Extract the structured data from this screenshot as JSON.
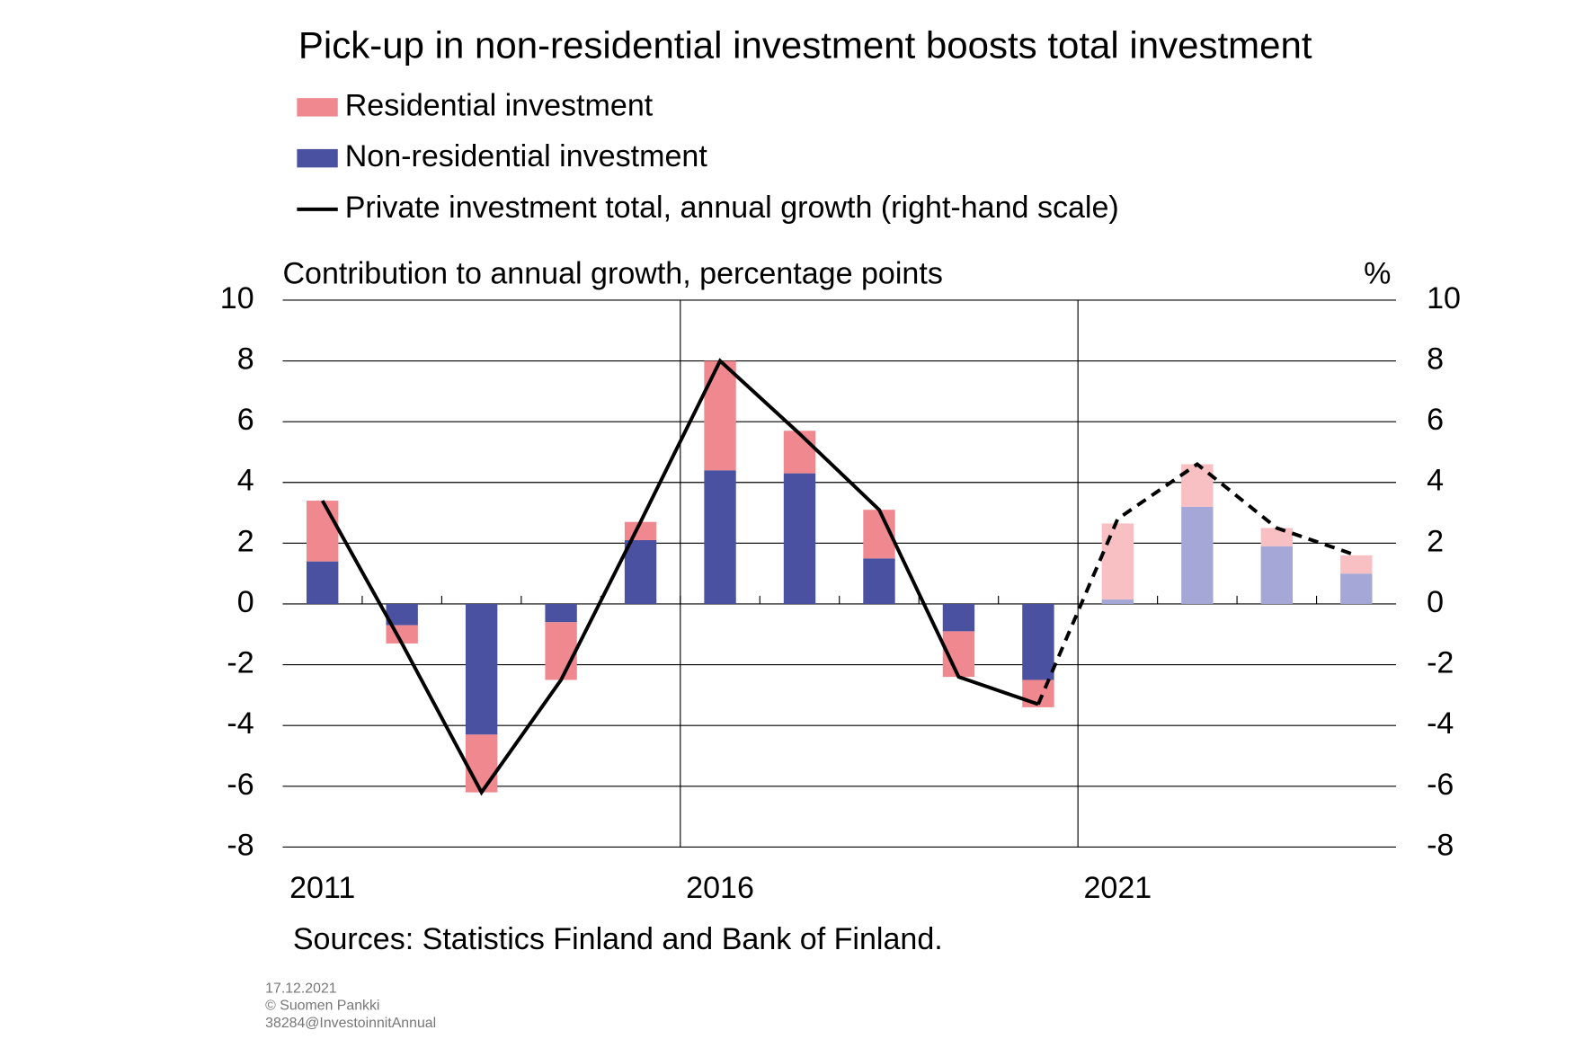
{
  "chart_data": {
    "type": "bar",
    "title": "Pick-up in non-residential investment boosts total investment",
    "y_axis_label": "Contribution to annual growth, percentage points",
    "y2_axis_label": "%",
    "source": "Sources: Statistics Finland and Bank of Finland.",
    "footnotes": [
      "17.12.2021",
      "© Suomen  Pankki",
      "38284@InvestoinnitAnnual"
    ],
    "categories": [
      "2011",
      null,
      null,
      null,
      null,
      "2016",
      null,
      null,
      null,
      null,
      "2021",
      null,
      null,
      null
    ],
    "stacked": true,
    "series": [
      {
        "name": "Non-residential investment",
        "color": "#4b51a1",
        "colors": [
          "#4b51a1",
          "#4b51a1",
          "#4b51a1",
          "#4b51a1",
          "#4b51a1",
          "#4b51a1",
          "#4b51a1",
          "#4b51a1",
          "#4b51a1",
          "#4b51a1",
          "#a5a8d6",
          "#a5a8d6",
          "#a5a8d6",
          "#a5a8d6"
        ],
        "values": [
          1.4,
          -0.7,
          -4.3,
          -0.6,
          2.1,
          4.4,
          4.3,
          1.5,
          -0.9,
          -2.5,
          0.15,
          3.2,
          1.9,
          1.0
        ]
      },
      {
        "name": "Residential investment",
        "color": "#f0898f",
        "colors": [
          "#f0898f",
          "#f0898f",
          "#f0898f",
          "#f0898f",
          "#f0898f",
          "#f0898f",
          "#f0898f",
          "#f0898f",
          "#f0898f",
          "#f0898f",
          "#f8c0c3",
          "#f8c0c3",
          "#f8c0c3",
          "#f8c0c3"
        ],
        "values": [
          2.0,
          -0.6,
          -1.9,
          -1.9,
          0.6,
          3.6,
          1.4,
          1.6,
          -1.5,
          -0.9,
          2.5,
          1.4,
          0.6,
          0.6
        ]
      },
      {
        "name": "Private investment total, annual growth (right-hand scale)",
        "type": "line",
        "axis": "y2",
        "color": "#000000",
        "line_styles": [
          "solid",
          "solid",
          "solid",
          "solid",
          "solid",
          "solid",
          "solid",
          "solid",
          "solid",
          "solid",
          "dashed",
          "dashed",
          "dashed",
          "dashed"
        ],
        "values": [
          3.4,
          -1.3,
          -6.2,
          -2.5,
          2.7,
          8.0,
          5.6,
          3.1,
          -2.4,
          -3.3,
          2.8,
          4.6,
          2.5,
          1.6
        ]
      }
    ],
    "ylim": [
      -8,
      10
    ],
    "yticks": [
      -8,
      -6,
      -4,
      -2,
      0,
      2,
      4,
      6,
      8,
      10
    ],
    "y2lim": [
      -8,
      10
    ],
    "y2ticks": [
      -8,
      -6,
      -4,
      -2,
      0,
      2,
      4,
      6,
      8,
      10
    ],
    "grid": true
  }
}
